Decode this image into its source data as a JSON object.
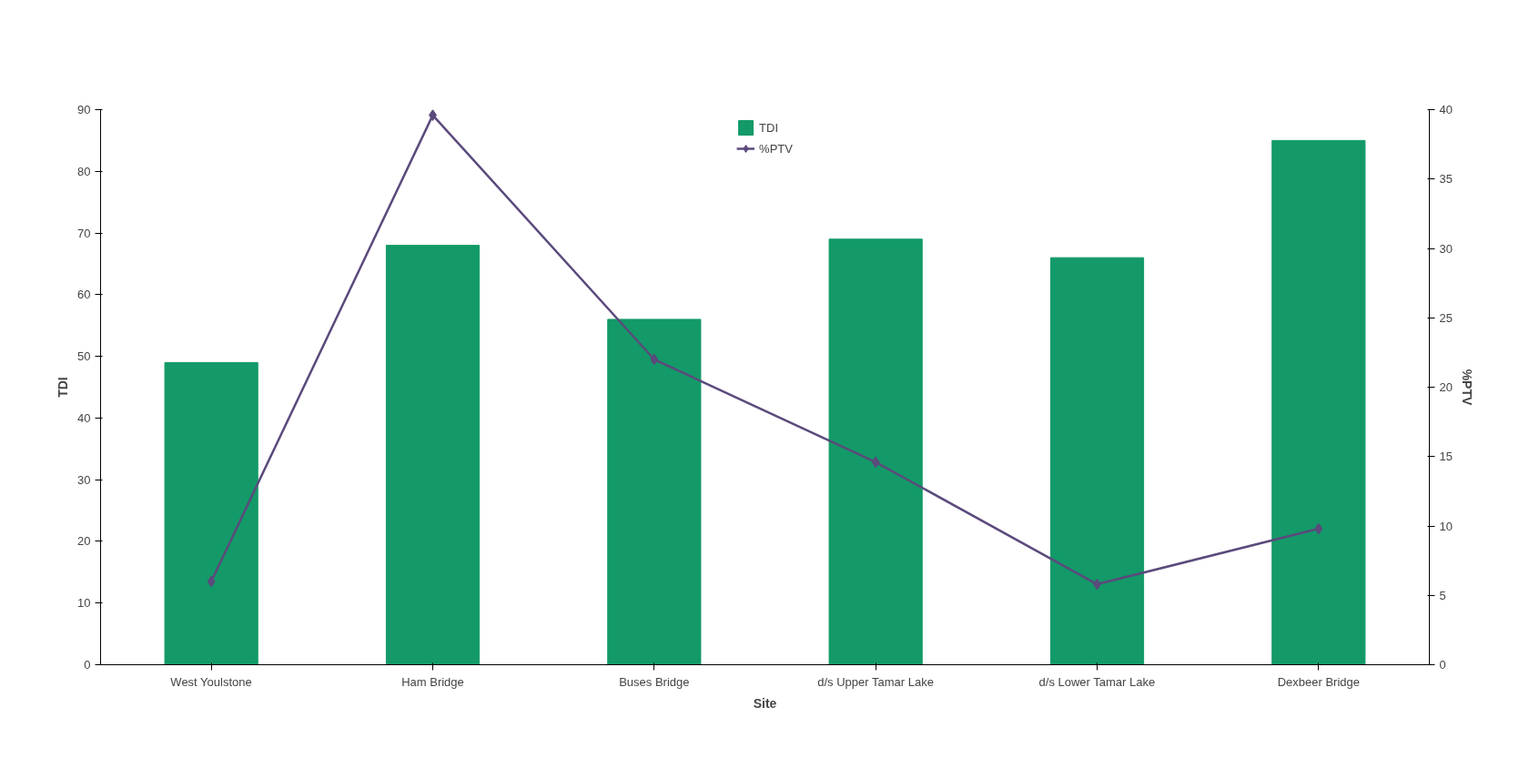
{
  "chart_data": {
    "type": "bar",
    "categories": [
      "West Youlstone",
      "Ham Bridge",
      "Buses Bridge",
      "d/s Upper Tamar Lake",
      "d/s Lower Tamar Lake",
      "Dexbeer Bridge"
    ],
    "series": [
      {
        "name": "TDI",
        "color": "#139a68",
        "values": [
          49,
          68,
          56,
          69,
          66,
          85
        ]
      },
      {
        "name": "%PTV",
        "type": "line",
        "axis": "y2",
        "color": "#5b4a7c",
        "values": [
          6.0,
          39.6,
          22.0,
          14.6,
          5.8,
          9.8
        ]
      }
    ],
    "xlabel": "Site",
    "ylabel": "TDI",
    "y2label": "%PTV",
    "ylim": [
      0,
      90
    ],
    "yticks": [
      0,
      10,
      20,
      30,
      40,
      50,
      60,
      70,
      80,
      90
    ],
    "y2lim": [
      0,
      40
    ],
    "y2ticks": [
      0,
      5,
      10,
      15,
      20,
      25,
      30,
      35,
      40
    ],
    "legend": "top",
    "marker": "diamond",
    "grid": false
  }
}
